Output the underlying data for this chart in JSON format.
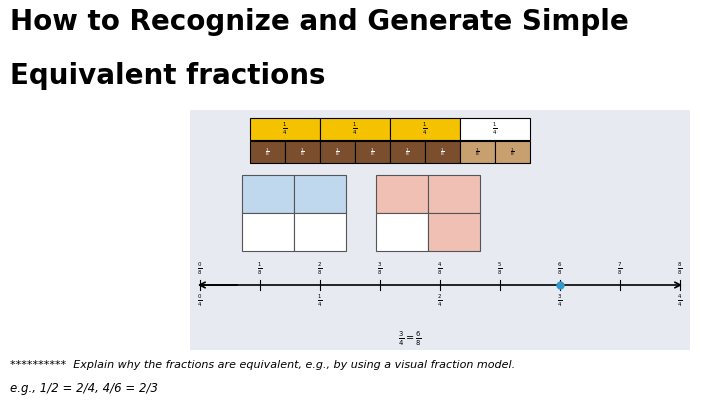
{
  "title_line1": "How to Recognize and Generate Simple",
  "title_line2": "Equivalent fractions",
  "title_fontsize": 20,
  "bg_color": "#ffffff",
  "panel_bg": "#e8eaf2",
  "yellow_color": "#f5c200",
  "brown_color": "#7B4F2E",
  "brown_light": "#c8a070",
  "blue_color": "#c0d8ee",
  "pink_color": "#f0c0b4",
  "footer_line1": "**********  Explain why the fractions are equivalent, e.g., by using a visual fraction model.",
  "footer_line2": "e.g., 1/2 = 2/4, 4/6 = 2/3",
  "dot_color": "#3399cc"
}
